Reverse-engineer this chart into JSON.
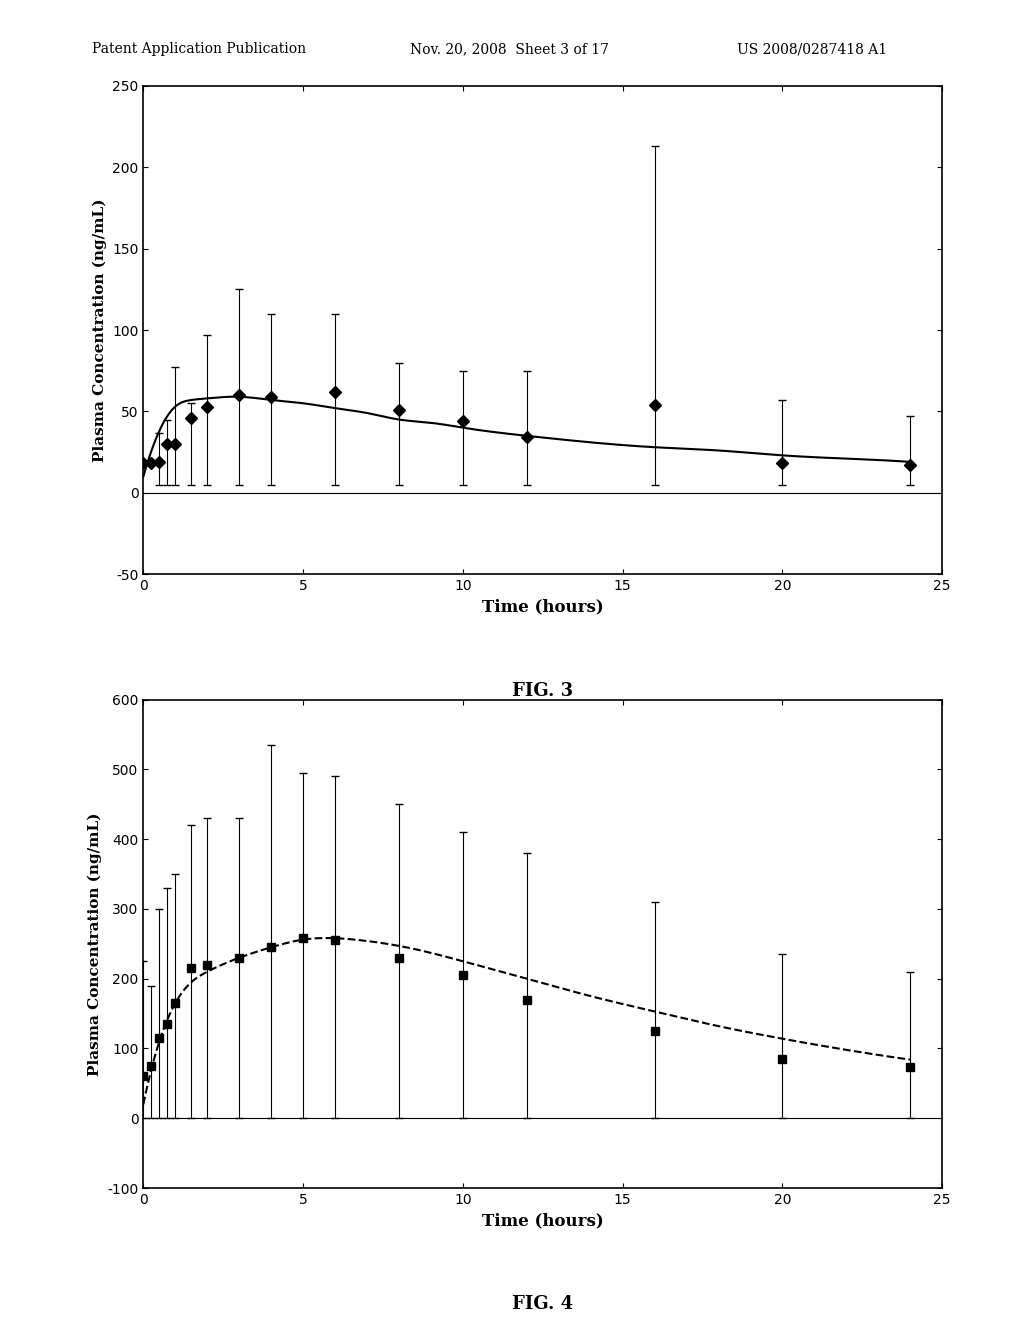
{
  "header_left": "Patent Application Publication",
  "header_center": "Nov. 20, 2008  Sheet 3 of 17",
  "header_right": "US 2008/0287418 A1",
  "fig3": {
    "title": "FIG. 3",
    "xlabel": "Time (hours)",
    "ylabel": "Plasma Concentration (ng/mL)",
    "ylim": [
      -50,
      250
    ],
    "xlim": [
      0,
      25
    ],
    "yticks": [
      -50,
      0,
      50,
      100,
      150,
      200,
      250
    ],
    "xticks": [
      0,
      5,
      10,
      15,
      20,
      25
    ],
    "time": [
      0,
      0.25,
      0.5,
      0.75,
      1.0,
      1.5,
      2.0,
      3.0,
      4.0,
      6.0,
      8.0,
      10.0,
      12.0,
      16.0,
      20.0,
      24.0
    ],
    "mean": [
      18,
      18,
      19,
      30,
      30,
      46,
      53,
      60,
      59,
      62,
      51,
      44,
      34,
      54,
      18,
      17
    ],
    "error_upper": [
      18,
      18,
      37,
      45,
      77,
      55,
      97,
      125,
      110,
      110,
      80,
      75,
      75,
      213,
      57,
      47
    ],
    "error_lower": [
      18,
      18,
      5,
      5,
      5,
      5,
      5,
      5,
      5,
      5,
      5,
      5,
      5,
      5,
      5,
      5
    ],
    "curve_x": [
      0,
      0.5,
      1.0,
      1.5,
      2.0,
      3.0,
      4.0,
      5.0,
      6.0,
      7.0,
      8.0,
      9.0,
      10.0,
      12.0,
      14.0,
      16.0,
      18.0,
      20.0,
      22.0,
      24.0
    ],
    "curve_y": [
      10,
      38,
      53,
      57,
      58,
      59,
      57,
      55,
      52,
      49,
      45,
      43,
      40,
      35,
      31,
      28,
      26,
      23,
      21,
      19
    ],
    "marker": "D",
    "linestyle": "-",
    "color": "black"
  },
  "fig4": {
    "title": "FIG. 4",
    "xlabel": "Time (hours)",
    "ylabel": "Plasma Concentration (ng/mL)",
    "ylim": [
      -100,
      600
    ],
    "xlim": [
      0,
      25
    ],
    "yticks": [
      -100,
      0,
      100,
      200,
      300,
      400,
      500,
      600
    ],
    "xticks": [
      0,
      5,
      10,
      15,
      20,
      25
    ],
    "time": [
      0,
      0.25,
      0.5,
      0.75,
      1.0,
      1.5,
      2.0,
      3.0,
      4.0,
      5.0,
      6.0,
      8.0,
      10.0,
      12.0,
      16.0,
      20.0,
      24.0
    ],
    "mean": [
      60,
      75,
      115,
      135,
      165,
      215,
      220,
      230,
      245,
      258,
      255,
      230,
      205,
      170,
      125,
      85,
      73
    ],
    "error_upper": [
      225,
      190,
      300,
      330,
      350,
      420,
      430,
      430,
      535,
      495,
      490,
      450,
      410,
      380,
      310,
      235,
      210
    ],
    "error_lower": [
      0,
      0,
      0,
      0,
      0,
      0,
      0,
      0,
      0,
      0,
      0,
      0,
      0,
      0,
      0,
      0,
      0
    ],
    "curve_x": [
      0,
      0.5,
      1.0,
      1.5,
      2.0,
      3.0,
      4.0,
      5.0,
      6.0,
      7.0,
      8.0,
      9.0,
      10.0,
      12.0,
      14.0,
      16.0,
      18.0,
      20.0,
      22.0,
      24.0
    ],
    "curve_y": [
      20,
      110,
      165,
      195,
      210,
      230,
      245,
      256,
      258,
      254,
      247,
      237,
      225,
      200,
      175,
      153,
      132,
      114,
      98,
      84
    ],
    "marker": "s",
    "linestyle": "--",
    "color": "black"
  }
}
